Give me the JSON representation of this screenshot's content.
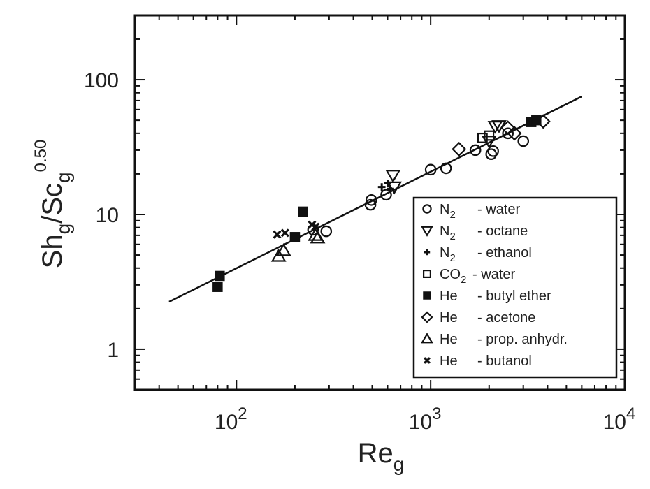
{
  "chart_data": {
    "type": "scatter",
    "title": "",
    "xlabel": "Re_g",
    "ylabel": "Sh_g/Sc_g^0.50",
    "x_scale": "log",
    "y_scale": "log",
    "xlim": [
      30,
      10000
    ],
    "ylim": [
      0.5,
      300
    ],
    "grid": false,
    "legend_position": "bottom-right",
    "x_ticks": [
      {
        "value": 100,
        "base": "10",
        "exp": "2"
      },
      {
        "value": 1000,
        "base": "10",
        "exp": "3"
      },
      {
        "value": 10000,
        "base": "10",
        "exp": "4"
      }
    ],
    "y_ticks": [
      {
        "value": 1,
        "label": "1"
      },
      {
        "value": 10,
        "label": "10"
      },
      {
        "value": 100,
        "label": "100"
      }
    ],
    "xlabel_parts": {
      "main": "Re",
      "sub": "g"
    },
    "ylabel_parts": {
      "a": "Sh",
      "a_sub": "g",
      "slash": "/",
      "b": "Sc",
      "b_sub": "g",
      "b_sup": "0.50"
    },
    "fit_line": {
      "x": [
        45,
        6000
      ],
      "y": [
        2.25,
        75
      ]
    },
    "series": [
      {
        "name": "N2 - water",
        "marker": "circle",
        "gas": "N",
        "gas_sub": "2",
        "liquid": "- water",
        "points": [
          [
            248,
            7.7
          ],
          [
            290,
            7.5
          ],
          [
            490,
            11.8
          ],
          [
            495,
            12.8
          ],
          [
            590,
            14
          ],
          [
            1000,
            21.5
          ],
          [
            1200,
            22
          ],
          [
            1700,
            30
          ],
          [
            2050,
            28
          ],
          [
            2100,
            29.5
          ],
          [
            3000,
            35
          ],
          [
            2500,
            40
          ]
        ]
      },
      {
        "name": "N2 - octane",
        "marker": "triangle-down",
        "gas": "N",
        "gas_sub": "2",
        "liquid": "- octane",
        "points": [
          [
            640,
            19.5
          ],
          [
            650,
            16
          ],
          [
            2150,
            45
          ],
          [
            2250,
            45.5
          ],
          [
            2000,
            35
          ]
        ]
      },
      {
        "name": "N2 - ethanol",
        "marker": "plus",
        "gas": "N",
        "gas_sub": "2",
        "liquid": "- ethanol",
        "points": [
          [
            560,
            16
          ],
          [
            600,
            17
          ],
          [
            620,
            15.5
          ]
        ]
      },
      {
        "name": "CO2 - water",
        "marker": "square-open",
        "gas": "CO",
        "gas_sub": "2",
        "liquid": "- water",
        "points": [
          [
            1850,
            37
          ],
          [
            2000,
            38.5
          ]
        ]
      },
      {
        "name": "He - butyl ether",
        "marker": "square-filled",
        "gas": "He",
        "gas_sub": "",
        "liquid": "- butyl ether",
        "points": [
          [
            80,
            2.9
          ],
          [
            82,
            3.5
          ],
          [
            200,
            6.8
          ],
          [
            220,
            10.5
          ],
          [
            3300,
            48.5
          ],
          [
            3500,
            50
          ]
        ]
      },
      {
        "name": "He - acetone",
        "marker": "diamond",
        "gas": "He",
        "gas_sub": "",
        "liquid": "- acetone",
        "points": [
          [
            1400,
            30.5
          ],
          [
            2500,
            44
          ],
          [
            2700,
            40
          ],
          [
            3800,
            49
          ]
        ]
      },
      {
        "name": "He - prop. anhydr.",
        "marker": "triangle-up",
        "gas": "He",
        "gas_sub": "",
        "liquid": "- prop. anhydr.",
        "points": [
          [
            165,
            4.9
          ],
          [
            175,
            5.4
          ],
          [
            255,
            7
          ],
          [
            262,
            6.7
          ]
        ]
      },
      {
        "name": "He - butanol",
        "marker": "x",
        "gas": "He",
        "gas_sub": "",
        "liquid": "- butanol",
        "points": [
          [
            162,
            7.1
          ],
          [
            178,
            7.3
          ],
          [
            245,
            8.4
          ],
          [
            255,
            8.1
          ]
        ]
      }
    ]
  }
}
